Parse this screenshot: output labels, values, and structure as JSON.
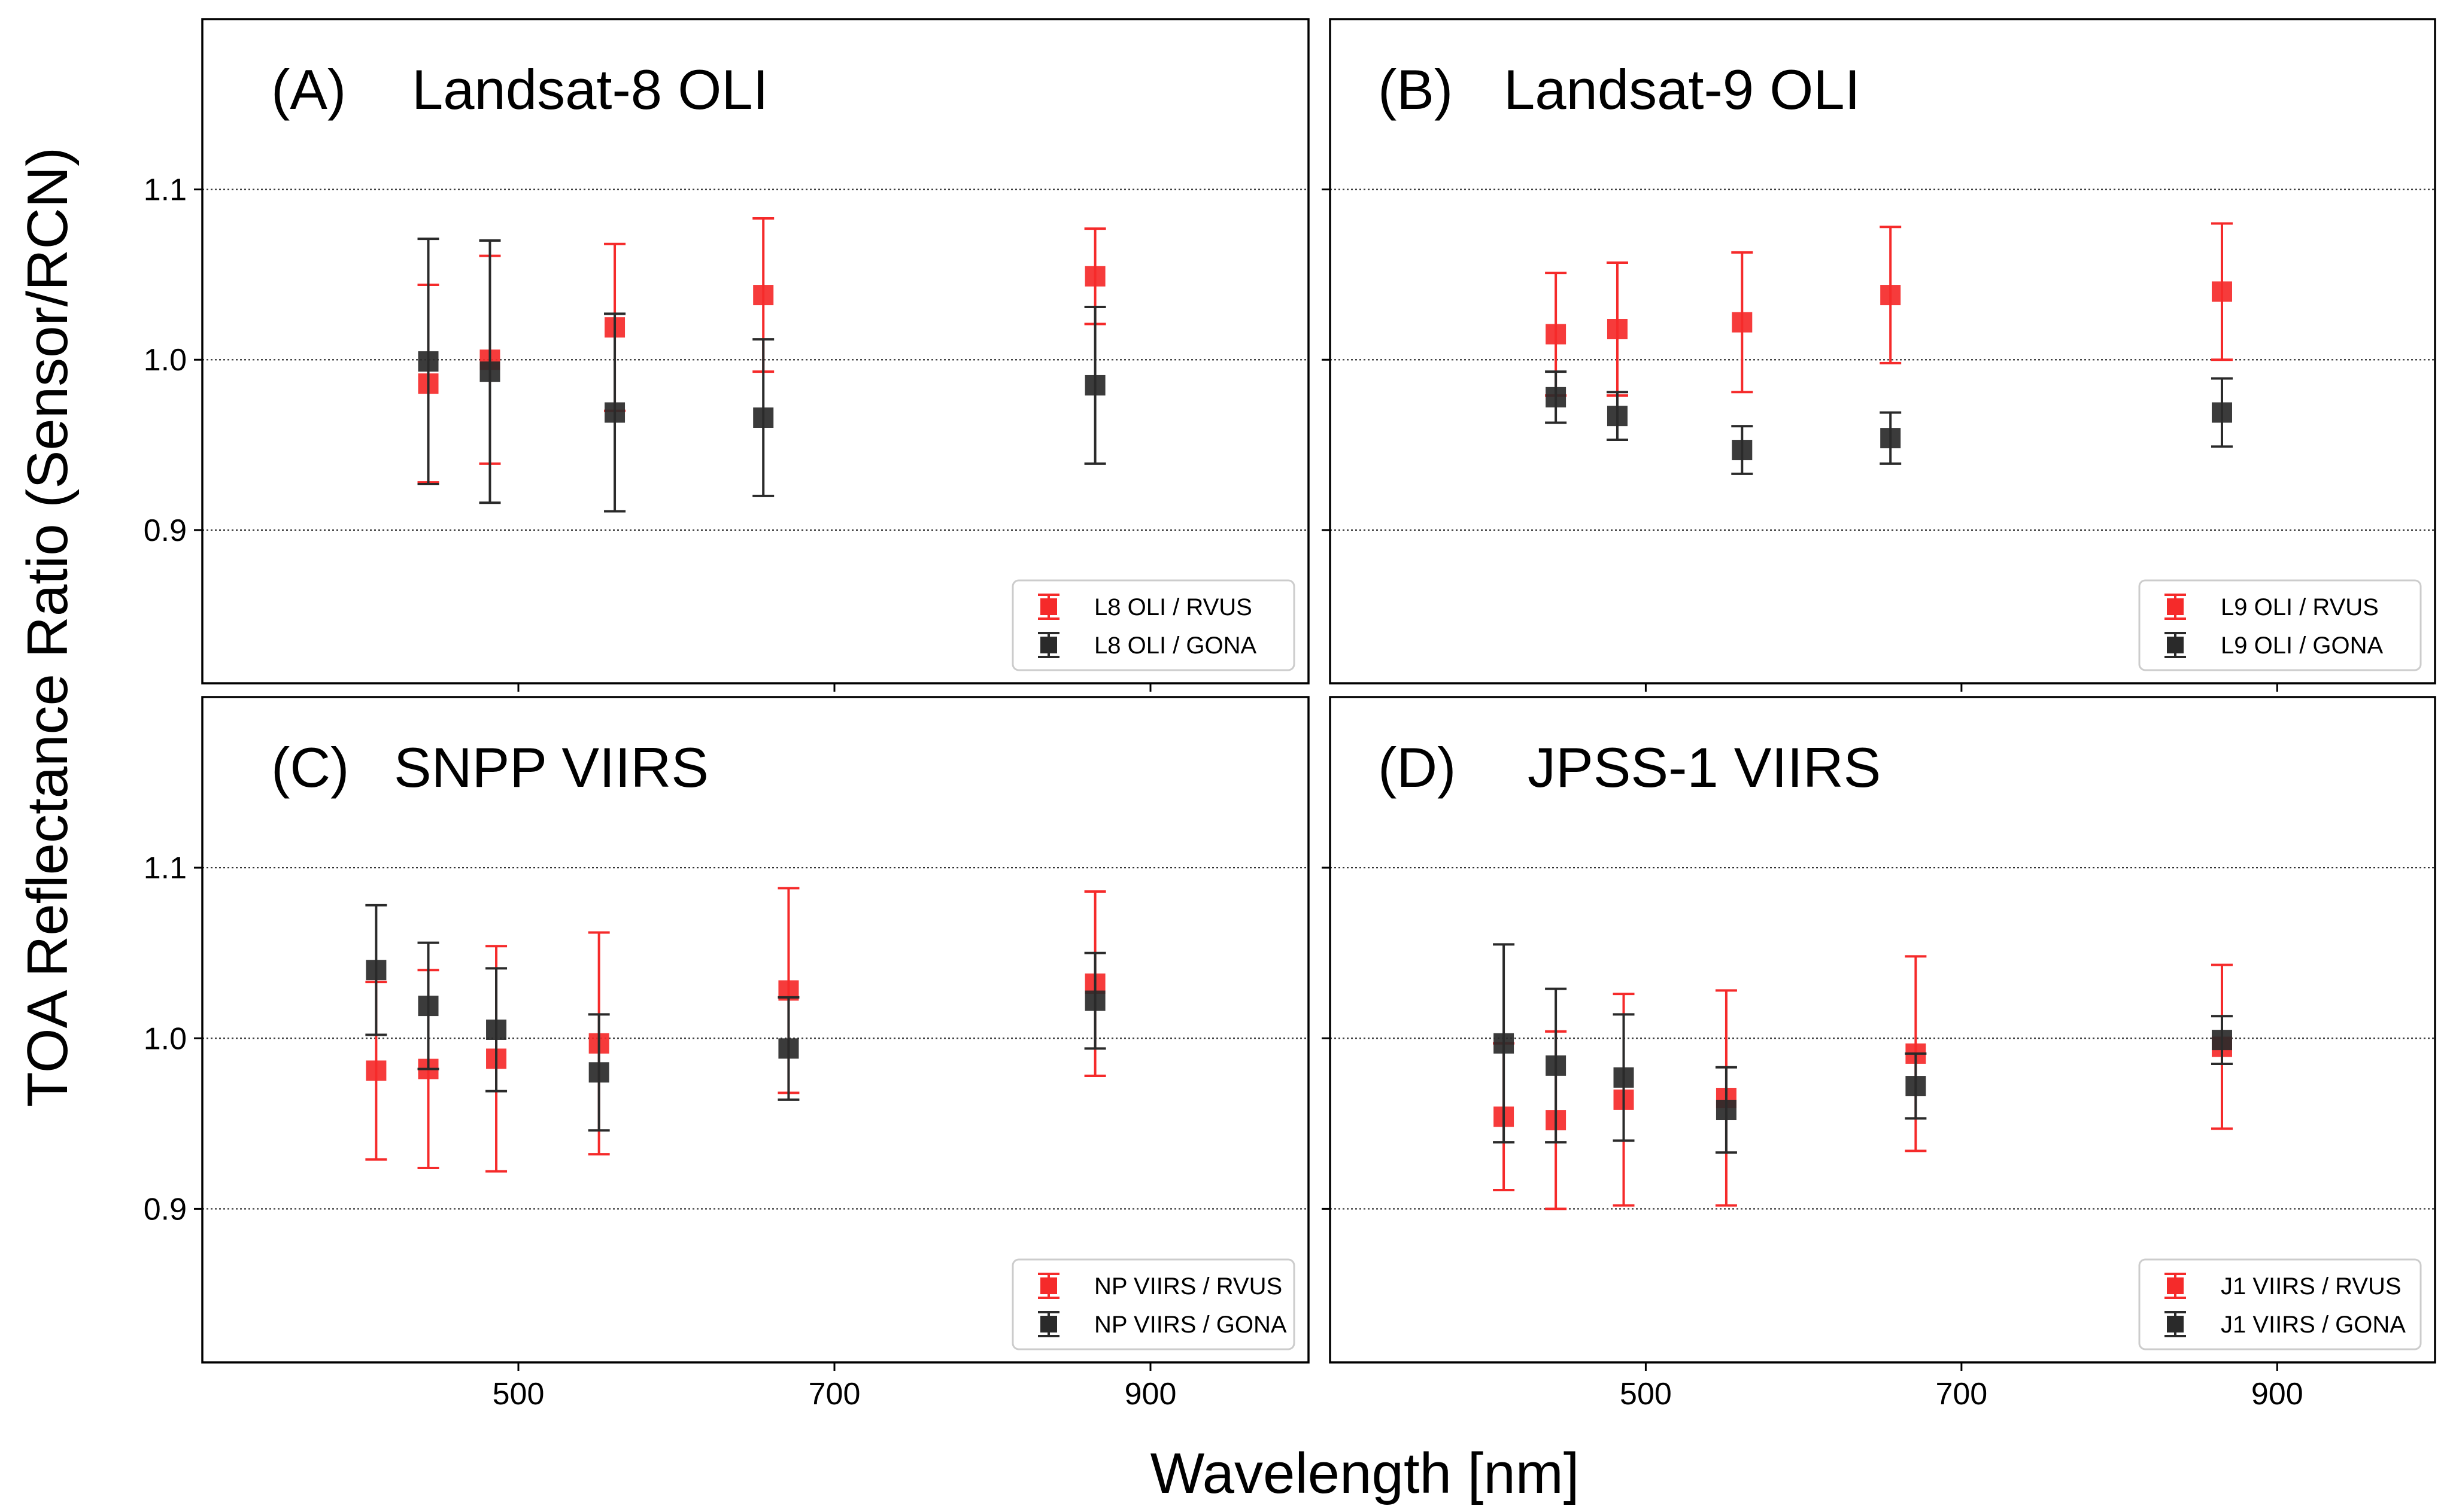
{
  "figure": {
    "ylabel": "TOA Reflectance Ratio (Sensor/RCN)",
    "xlabel": "Wavelength [nm]"
  },
  "colors": {
    "rvus": "#f52a2a",
    "gona": "#2a2a2a"
  },
  "chart_data": [
    {
      "type": "scatter",
      "panel_id": "a",
      "title_letter": "(A)",
      "title_name": "Landsat-8 OLI",
      "xlim": [
        300,
        1000
      ],
      "ylim": [
        0.81,
        1.2
      ],
      "xticks": [
        500,
        700,
        900
      ],
      "show_xticklabels": false,
      "yticks": [
        0.9,
        1.0,
        1.1
      ],
      "ytick_labels": [
        "0.9",
        "1.0",
        "1.1"
      ],
      "grid": "horizontal dotted",
      "legend_position": "bottom-right",
      "series": [
        {
          "name": "L8 OLI / RVUS",
          "color_key": "rvus",
          "x": [
            443,
            482,
            561,
            655,
            865
          ],
          "y": [
            0.986,
            1.0,
            1.019,
            1.038,
            1.049
          ],
          "err": [
            0.058,
            0.061,
            0.049,
            0.045,
            0.028
          ]
        },
        {
          "name": "L8 OLI / GONA",
          "color_key": "gona",
          "x": [
            443,
            482,
            561,
            655,
            865
          ],
          "y": [
            0.999,
            0.993,
            0.969,
            0.966,
            0.985
          ],
          "err": [
            0.072,
            0.077,
            0.058,
            0.046,
            0.046
          ]
        }
      ]
    },
    {
      "type": "scatter",
      "panel_id": "b",
      "title_letter": "(B)",
      "title_name": "Landsat-9 OLI",
      "xlim": [
        300,
        1000
      ],
      "ylim": [
        0.81,
        1.2
      ],
      "xticks": [
        500,
        700,
        900
      ],
      "show_xticklabels": false,
      "yticks": [
        0.9,
        1.0,
        1.1
      ],
      "ytick_labels": [
        "",
        "",
        ""
      ],
      "grid": "horizontal dotted",
      "legend_position": "bottom-right",
      "series": [
        {
          "name": "L9 OLI / RVUS",
          "color_key": "rvus",
          "x": [
            443,
            482,
            561,
            655,
            865
          ],
          "y": [
            1.015,
            1.018,
            1.022,
            1.038,
            1.04
          ],
          "err": [
            0.036,
            0.039,
            0.041,
            0.04,
            0.04
          ]
        },
        {
          "name": "L9 OLI / GONA",
          "color_key": "gona",
          "x": [
            443,
            482,
            561,
            655,
            865
          ],
          "y": [
            0.978,
            0.967,
            0.947,
            0.954,
            0.969
          ],
          "err": [
            0.015,
            0.014,
            0.014,
            0.015,
            0.02
          ]
        }
      ]
    },
    {
      "type": "scatter",
      "panel_id": "c",
      "title_letter": "(C)",
      "title_name": "SNPP VIIRS",
      "xlim": [
        300,
        1000
      ],
      "ylim": [
        0.81,
        1.2
      ],
      "xticks": [
        500,
        700,
        900
      ],
      "show_xticklabels": true,
      "xtick_labels": [
        "500",
        "700",
        "900"
      ],
      "yticks": [
        0.9,
        1.0,
        1.1
      ],
      "ytick_labels": [
        "0.9",
        "1.0",
        "1.1"
      ],
      "grid": "horizontal dotted",
      "legend_position": "bottom-right",
      "series": [
        {
          "name": "NP VIIRS / RVUS",
          "color_key": "rvus",
          "x": [
            410,
            443,
            486,
            551,
            671,
            865
          ],
          "y": [
            0.981,
            0.982,
            0.988,
            0.997,
            1.028,
            1.032
          ],
          "err": [
            0.052,
            0.058,
            0.066,
            0.065,
            0.06,
            0.054
          ]
        },
        {
          "name": "NP VIIRS / GONA",
          "color_key": "gona",
          "x": [
            410,
            443,
            486,
            551,
            671,
            865
          ],
          "y": [
            1.04,
            1.019,
            1.005,
            0.98,
            0.994,
            1.022
          ],
          "err": [
            0.038,
            0.037,
            0.036,
            0.034,
            0.03,
            0.028
          ]
        }
      ]
    },
    {
      "type": "scatter",
      "panel_id": "d",
      "title_letter": "(D)",
      "title_name": "JPSS-1 VIIRS",
      "xlim": [
        300,
        1000
      ],
      "ylim": [
        0.81,
        1.2
      ],
      "xticks": [
        500,
        700,
        900
      ],
      "show_xticklabels": true,
      "xtick_labels": [
        "500",
        "700",
        "900"
      ],
      "yticks": [
        0.9,
        1.0,
        1.1
      ],
      "ytick_labels": [
        "",
        "",
        ""
      ],
      "grid": "horizontal dotted",
      "legend_position": "bottom-right",
      "series": [
        {
          "name": "J1 VIIRS / RVUS",
          "color_key": "rvus",
          "x": [
            410,
            443,
            486,
            551,
            671,
            865
          ],
          "y": [
            0.954,
            0.952,
            0.964,
            0.965,
            0.991,
            0.995
          ],
          "err": [
            0.043,
            0.052,
            0.062,
            0.063,
            0.057,
            0.048
          ]
        },
        {
          "name": "J1 VIIRS / GONA",
          "color_key": "gona",
          "x": [
            410,
            443,
            486,
            551,
            671,
            865
          ],
          "y": [
            0.997,
            0.984,
            0.977,
            0.958,
            0.972,
            0.999
          ],
          "err": [
            0.058,
            0.045,
            0.037,
            0.025,
            0.019,
            0.014
          ]
        }
      ]
    }
  ]
}
